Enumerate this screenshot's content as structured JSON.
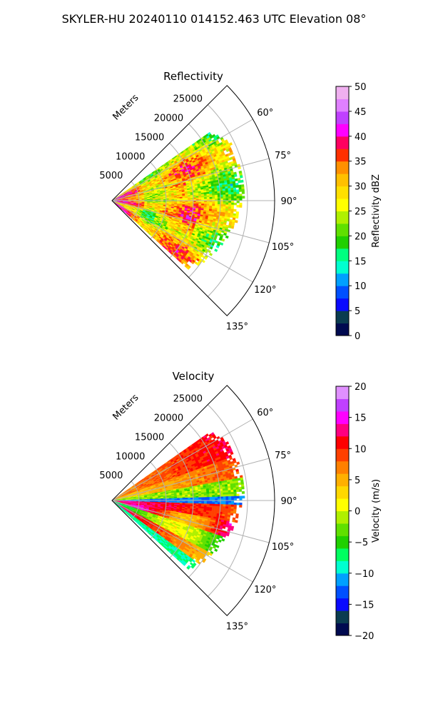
{
  "suptitle": "SKYLER-HU  20240110  014152.463 UTC Elevation 08°",
  "colors": {
    "grid": "#b0b0b0",
    "frame": "#000000",
    "reflectivity_scale": [
      "#0a1f5c",
      "#0b3a7a",
      "#0e5a3a",
      "#0a7a4a",
      "#1a3fd0",
      "#1e6bff",
      "#1ea0ff",
      "#00d0ff",
      "#00ffd0",
      "#00ff60",
      "#3cdc00",
      "#6ae000",
      "#a8f000",
      "#d8f000",
      "#ffff00",
      "#ffe000",
      "#ffc400",
      "#ffa000",
      "#ff7000",
      "#ff3000",
      "#ff0000",
      "#ff0080",
      "#ff00ff",
      "#d040ff",
      "#b060ff",
      "#e090ff",
      "#f0b0f0",
      "#ffe0ff"
    ],
    "velocity_scale": [
      "#0a1f5c",
      "#0b3a7a",
      "#0e5a3a",
      "#0a7a4a",
      "#1a3fd0",
      "#1e6bff",
      "#1ea0ff",
      "#00d0ff",
      "#00ffd0",
      "#00ff60",
      "#3cdc00",
      "#6ae000",
      "#a8f000",
      "#d8f000",
      "#ffff00",
      "#ffe000",
      "#ffc400",
      "#ffa000",
      "#ff7000",
      "#ff3000",
      "#ff0000",
      "#ff0080",
      "#ff00ff",
      "#d040ff",
      "#b060ff",
      "#e090ff",
      "#f0b0f0",
      "#ffe0ff"
    ]
  },
  "chart_data": [
    {
      "type": "heatmap",
      "projection": "polar-sector",
      "title": "Reflectivity",
      "radial_axis_label": "Meters",
      "radial_ticks": [
        "5000",
        "10000",
        "15000",
        "20000",
        "25000"
      ],
      "radial_tick_values": [
        5000,
        10000,
        15000,
        20000,
        25000
      ],
      "rlim": [
        0,
        30000
      ],
      "azimuth_ticks": [
        "60°",
        "75°",
        "90°",
        "105°",
        "120°",
        "135°"
      ],
      "azimuth_tick_values": [
        60,
        75,
        90,
        105,
        120,
        135
      ],
      "azimuth_range": [
        45,
        135
      ],
      "data_azimuth_range": [
        55,
        132
      ],
      "grid": true,
      "colorbar": {
        "label": "Reflectivity dBZ",
        "ticks": [
          "0",
          "5",
          "10",
          "15",
          "20",
          "25",
          "30",
          "35",
          "40",
          "45",
          "50"
        ],
        "range": [
          0,
          50
        ]
      },
      "description_values": {
        "dominant_range_dbz": [
          20,
          35
        ],
        "peak_dbz": 40
      }
    },
    {
      "type": "heatmap",
      "projection": "polar-sector",
      "title": "Velocity",
      "radial_axis_label": "Meters",
      "radial_ticks": [
        "5000",
        "10000",
        "15000",
        "20000",
        "25000"
      ],
      "radial_tick_values": [
        5000,
        10000,
        15000,
        20000,
        25000
      ],
      "rlim": [
        0,
        30000
      ],
      "azimuth_ticks": [
        "60°",
        "75°",
        "90°",
        "105°",
        "120°",
        "135°"
      ],
      "azimuth_tick_values": [
        60,
        75,
        90,
        105,
        120,
        135
      ],
      "azimuth_range": [
        45,
        135
      ],
      "data_azimuth_range": [
        55,
        132
      ],
      "grid": true,
      "colorbar": {
        "label": "Velocity (m/s)",
        "ticks": [
          "20",
          "15",
          "10",
          "5",
          "0",
          "−5",
          "−10",
          "−15",
          "−20"
        ],
        "range": [
          -20,
          20
        ]
      },
      "description_values": {
        "near_zero_band_az": [
          80,
          90
        ],
        "inbound_band_az": [
          95,
          105
        ]
      }
    }
  ]
}
